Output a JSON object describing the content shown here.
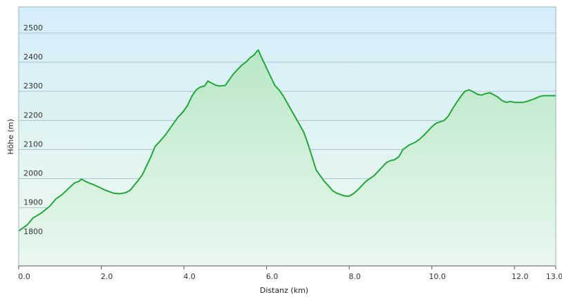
{
  "chart_data": {
    "type": "area",
    "title": "",
    "xlabel": "Distanz  (km)",
    "ylabel": "Höhe (m)",
    "xlim": [
      0,
      13
    ],
    "ylim": [
      1700,
      2590
    ],
    "x_ticks": [
      "0.0",
      "2.0",
      "4.0",
      "6.0",
      "8.0",
      "10.0",
      "12.0",
      "13.0"
    ],
    "x_tick_values": [
      0,
      2,
      4,
      6,
      8,
      10,
      12,
      13
    ],
    "y_ticks": [
      "1800",
      "1900",
      "2000",
      "2100",
      "2200",
      "2300",
      "2400",
      "2500"
    ],
    "y_tick_values": [
      1800,
      1900,
      2000,
      2100,
      2200,
      2300,
      2400,
      2500
    ],
    "grid": true,
    "colors": {
      "line": "#22a63a",
      "fill_top": "#b9e8c6",
      "fill_bottom": "#e9f8ee",
      "bg_top": "#d4eef9",
      "bg_bottom": "#eef9ee",
      "grid": "#a9c3d1"
    },
    "x": [
      0.0,
      0.2,
      0.35,
      0.55,
      0.75,
      0.9,
      1.05,
      1.2,
      1.35,
      1.45,
      1.52,
      1.6,
      1.7,
      1.8,
      1.95,
      2.1,
      2.3,
      2.45,
      2.6,
      2.7,
      2.8,
      2.9,
      3.0,
      3.1,
      3.2,
      3.3,
      3.4,
      3.55,
      3.7,
      3.85,
      3.97,
      4.08,
      4.2,
      4.3,
      4.4,
      4.5,
      4.58,
      4.65,
      4.75,
      4.85,
      5.0,
      5.1,
      5.2,
      5.3,
      5.4,
      5.5,
      5.6,
      5.7,
      5.75,
      5.8,
      5.85,
      5.9,
      6.0,
      6.1,
      6.2,
      6.3,
      6.4,
      6.5,
      6.6,
      6.7,
      6.8,
      6.9,
      7.0,
      7.1,
      7.2,
      7.3,
      7.4,
      7.5,
      7.6,
      7.7,
      7.8,
      7.9,
      8.0,
      8.1,
      8.2,
      8.3,
      8.4,
      8.5,
      8.6,
      8.7,
      8.8,
      8.9,
      9.0,
      9.1,
      9.2,
      9.3,
      9.45,
      9.6,
      9.7,
      9.8,
      9.9,
      10.0,
      10.1,
      10.2,
      10.3,
      10.4,
      10.5,
      10.6,
      10.7,
      10.8,
      10.9,
      11.0,
      11.1,
      11.2,
      11.3,
      11.4,
      11.5,
      11.6,
      11.7,
      11.8,
      11.9,
      12.0,
      12.1,
      12.2,
      12.3,
      12.4,
      12.5,
      12.6,
      12.7,
      12.8,
      12.9,
      13.0
    ],
    "values": [
      1820,
      1840,
      1865,
      1882,
      1905,
      1930,
      1945,
      1965,
      1985,
      1990,
      1998,
      1992,
      1985,
      1980,
      1970,
      1960,
      1950,
      1948,
      1952,
      1960,
      1978,
      1995,
      2015,
      2045,
      2075,
      2110,
      2125,
      2150,
      2180,
      2210,
      2228,
      2250,
      2285,
      2305,
      2315,
      2318,
      2335,
      2330,
      2322,
      2318,
      2320,
      2340,
      2360,
      2375,
      2390,
      2400,
      2415,
      2425,
      2435,
      2442,
      2425,
      2410,
      2380,
      2350,
      2320,
      2305,
      2285,
      2260,
      2235,
      2210,
      2185,
      2160,
      2120,
      2075,
      2030,
      2010,
      1990,
      1975,
      1958,
      1950,
      1945,
      1940,
      1940,
      1948,
      1960,
      1975,
      1990,
      2000,
      2010,
      2025,
      2040,
      2055,
      2062,
      2065,
      2075,
      2100,
      2115,
      2125,
      2135,
      2148,
      2163,
      2178,
      2190,
      2195,
      2200,
      2215,
      2240,
      2262,
      2282,
      2300,
      2305,
      2298,
      2290,
      2287,
      2292,
      2295,
      2288,
      2280,
      2268,
      2262,
      2265,
      2262,
      2262,
      2262,
      2265,
      2270,
      2275,
      2282,
      2285,
      2285,
      2285,
      2285
    ]
  }
}
